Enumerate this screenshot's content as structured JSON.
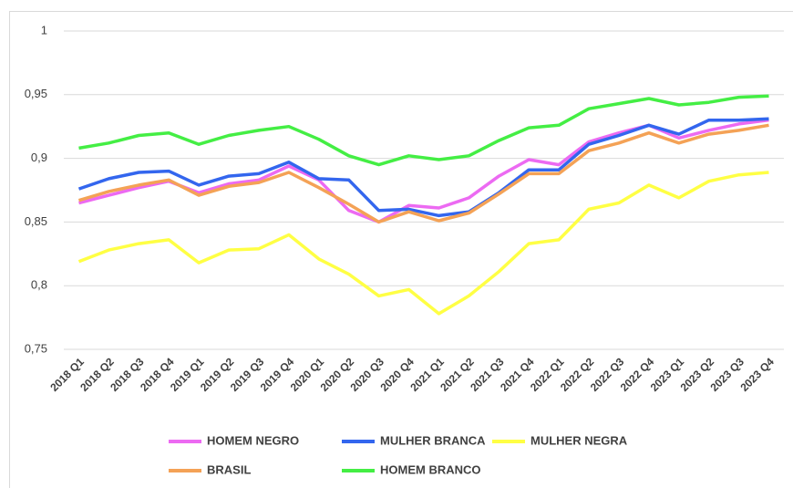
{
  "chart_data": {
    "type": "line",
    "categories": [
      "2018 Q1",
      "2018 Q2",
      "2018 Q3",
      "2018 Q4",
      "2019 Q1",
      "2019 Q2",
      "2019 Q3",
      "2019 Q4",
      "2020 Q1",
      "2020 Q2",
      "2020 Q3",
      "2020 Q4",
      "2021 Q1",
      "2021 Q2",
      "2021 Q3",
      "2021 Q4",
      "2022 Q1",
      "2022 Q2",
      "2022 Q3",
      "2022 Q4",
      "2023 Q1",
      "2023 Q2",
      "2023 Q3",
      "2023 Q4"
    ],
    "series": [
      {
        "name": "HOMEM NEGRO",
        "color": "#ec6af2",
        "values": [
          0.865,
          0.871,
          0.877,
          0.882,
          0.873,
          0.88,
          0.883,
          0.894,
          0.883,
          0.859,
          0.85,
          0.863,
          0.861,
          0.869,
          0.886,
          0.899,
          0.895,
          0.913,
          0.92,
          0.926,
          0.916,
          0.922,
          0.927,
          0.93
        ]
      },
      {
        "name": "MULHER BRANCA",
        "color": "#3366ee",
        "values": [
          0.876,
          0.884,
          0.889,
          0.89,
          0.879,
          0.886,
          0.888,
          0.897,
          0.884,
          0.883,
          0.859,
          0.86,
          0.855,
          0.858,
          0.873,
          0.891,
          0.891,
          0.911,
          0.918,
          0.926,
          0.919,
          0.93,
          0.93,
          0.931
        ]
      },
      {
        "name": "MULHER NEGRA",
        "color": "#ffff44",
        "values": [
          0.819,
          0.828,
          0.833,
          0.836,
          0.818,
          0.828,
          0.829,
          0.84,
          0.821,
          0.809,
          0.792,
          0.797,
          0.778,
          0.792,
          0.811,
          0.833,
          0.836,
          0.86,
          0.865,
          0.879,
          0.869,
          0.882,
          0.887,
          0.889
        ]
      },
      {
        "name": "BRASIL",
        "color": "#f4a256",
        "values": [
          0.867,
          0.874,
          0.879,
          0.883,
          0.871,
          0.878,
          0.881,
          0.889,
          0.877,
          0.864,
          0.85,
          0.858,
          0.851,
          0.857,
          0.872,
          0.888,
          0.888,
          0.906,
          0.912,
          0.92,
          0.912,
          0.919,
          0.922,
          0.926
        ]
      },
      {
        "name": "HOMEM BRANCO",
        "color": "#44ee44",
        "values": [
          0.908,
          0.912,
          0.918,
          0.92,
          0.911,
          0.918,
          0.922,
          0.925,
          0.915,
          0.902,
          0.895,
          0.902,
          0.899,
          0.902,
          0.914,
          0.924,
          0.926,
          0.939,
          0.943,
          0.947,
          0.942,
          0.944,
          0.948,
          0.949
        ]
      }
    ],
    "ylim": [
      0.75,
      1
    ],
    "yticks": [
      {
        "value": 0.75,
        "label": "0,75"
      },
      {
        "value": 0.8,
        "label": "0,8"
      },
      {
        "value": 0.85,
        "label": "0,85"
      },
      {
        "value": 0.9,
        "label": "0,9"
      },
      {
        "value": 0.95,
        "label": "0,95"
      },
      1
    ],
    "grid": true,
    "legend": "bottom"
  }
}
